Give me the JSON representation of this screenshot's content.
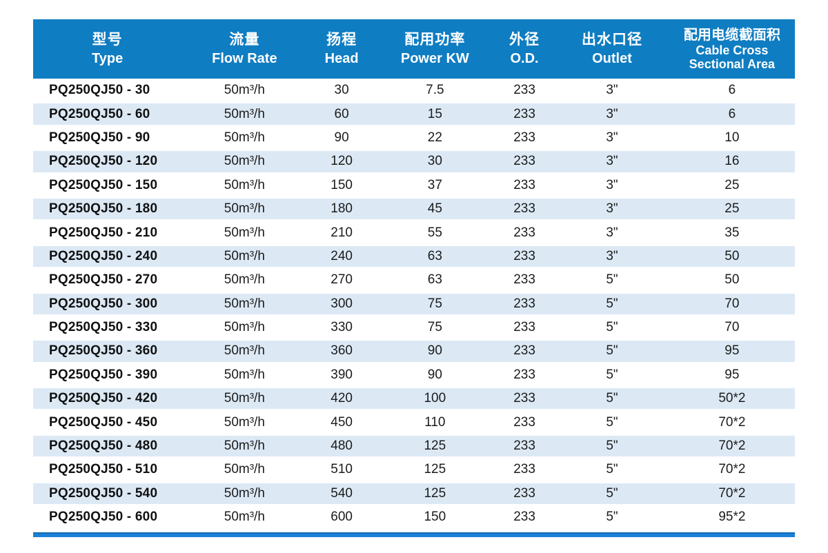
{
  "colors": {
    "header_bg": "#0f7dc2",
    "row_alt_bg": "#dce9f5",
    "bottom_bar": "#1b7fd6",
    "header_text": "#ffffff",
    "cell_text": "#1b1b1b"
  },
  "table": {
    "columns": [
      {
        "key": "type",
        "zh": "型号",
        "en": "Type"
      },
      {
        "key": "flow",
        "zh": "流量",
        "en": "Flow Rate"
      },
      {
        "key": "head",
        "zh": "扬程",
        "en": "Head"
      },
      {
        "key": "power",
        "zh": "配用功率",
        "en": "Power KW"
      },
      {
        "key": "od",
        "zh": "外径",
        "en": "O.D."
      },
      {
        "key": "outlet",
        "zh": "出水口径",
        "en": "Outlet"
      },
      {
        "key": "cable",
        "zh": "配用电缆截面积",
        "en": "Cable Cross\nSectional Area"
      }
    ],
    "rows": [
      {
        "type": "PQ250QJ50 - 30",
        "flow": "50m³/h",
        "head": "30",
        "power": "7.5",
        "od": "233",
        "outlet": "3\"",
        "cable": "6"
      },
      {
        "type": "PQ250QJ50 - 60",
        "flow": "50m³/h",
        "head": "60",
        "power": "15",
        "od": "233",
        "outlet": "3\"",
        "cable": "6"
      },
      {
        "type": "PQ250QJ50 - 90",
        "flow": "50m³/h",
        "head": "90",
        "power": "22",
        "od": "233",
        "outlet": "3\"",
        "cable": "10"
      },
      {
        "type": "PQ250QJ50 - 120",
        "flow": "50m³/h",
        "head": "120",
        "power": "30",
        "od": "233",
        "outlet": "3\"",
        "cable": "16"
      },
      {
        "type": "PQ250QJ50 - 150",
        "flow": "50m³/h",
        "head": "150",
        "power": "37",
        "od": "233",
        "outlet": "3\"",
        "cable": "25"
      },
      {
        "type": "PQ250QJ50 - 180",
        "flow": "50m³/h",
        "head": "180",
        "power": "45",
        "od": "233",
        "outlet": "3\"",
        "cable": "25"
      },
      {
        "type": "PQ250QJ50 - 210",
        "flow": "50m³/h",
        "head": "210",
        "power": "55",
        "od": "233",
        "outlet": "3\"",
        "cable": "35"
      },
      {
        "type": "PQ250QJ50 - 240",
        "flow": "50m³/h",
        "head": "240",
        "power": "63",
        "od": "233",
        "outlet": "3\"",
        "cable": "50"
      },
      {
        "type": "PQ250QJ50 - 270",
        "flow": "50m³/h",
        "head": "270",
        "power": "63",
        "od": "233",
        "outlet": "5\"",
        "cable": "50"
      },
      {
        "type": "PQ250QJ50 - 300",
        "flow": "50m³/h",
        "head": "300",
        "power": "75",
        "od": "233",
        "outlet": "5\"",
        "cable": "70"
      },
      {
        "type": "PQ250QJ50 - 330",
        "flow": "50m³/h",
        "head": "330",
        "power": "75",
        "od": "233",
        "outlet": "5\"",
        "cable": "70"
      },
      {
        "type": "PQ250QJ50 - 360",
        "flow": "50m³/h",
        "head": "360",
        "power": "90",
        "od": "233",
        "outlet": "5\"",
        "cable": "95"
      },
      {
        "type": "PQ250QJ50 - 390",
        "flow": "50m³/h",
        "head": "390",
        "power": "90",
        "od": "233",
        "outlet": "5\"",
        "cable": "95"
      },
      {
        "type": "PQ250QJ50 - 420",
        "flow": "50m³/h",
        "head": "420",
        "power": "100",
        "od": "233",
        "outlet": "5\"",
        "cable": "50*2"
      },
      {
        "type": "PQ250QJ50 - 450",
        "flow": "50m³/h",
        "head": "450",
        "power": "110",
        "od": "233",
        "outlet": "5\"",
        "cable": "70*2"
      },
      {
        "type": "PQ250QJ50 - 480",
        "flow": "50m³/h",
        "head": "480",
        "power": "125",
        "od": "233",
        "outlet": "5\"",
        "cable": "70*2"
      },
      {
        "type": "PQ250QJ50 - 510",
        "flow": "50m³/h",
        "head": "510",
        "power": "125",
        "od": "233",
        "outlet": "5\"",
        "cable": "70*2"
      },
      {
        "type": "PQ250QJ50 - 540",
        "flow": "50m³/h",
        "head": "540",
        "power": "125",
        "od": "233",
        "outlet": "5\"",
        "cable": "70*2"
      },
      {
        "type": "PQ250QJ50 - 600",
        "flow": "50m³/h",
        "head": "600",
        "power": "150",
        "od": "233",
        "outlet": "5\"",
        "cable": "95*2"
      }
    ]
  }
}
